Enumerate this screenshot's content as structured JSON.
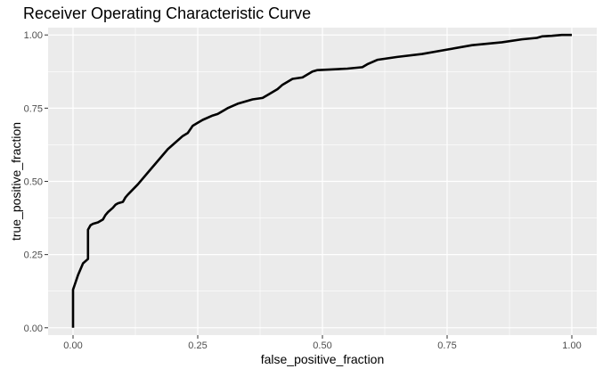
{
  "chart_data": {
    "type": "line",
    "title": "Receiver Operating Characteristic Curve",
    "xlabel": "false_positive_fraction",
    "ylabel": "true_positive_fraction",
    "xlim": [
      -0.05,
      1.05
    ],
    "ylim": [
      -0.025,
      1.025
    ],
    "x_ticks": [
      0.0,
      0.25,
      0.5,
      0.75,
      1.0
    ],
    "x_tick_labels": [
      "0.00",
      "0.25",
      "0.50",
      "0.75",
      "1.00"
    ],
    "y_ticks": [
      0.0,
      0.25,
      0.5,
      0.75,
      1.0
    ],
    "y_tick_labels": [
      "0.00",
      "0.25",
      "0.50",
      "0.75",
      "1.00"
    ],
    "grid": true,
    "legend": "none",
    "colors": {
      "panel_background": "#ebebeb",
      "grid_major": "#ffffff",
      "line": "#000000",
      "tick_text": "#4d4d4d"
    },
    "series": [
      {
        "x": [
          0.0,
          0.0,
          0.01,
          0.02,
          0.03,
          0.03,
          0.035,
          0.04,
          0.05,
          0.06,
          0.065,
          0.07,
          0.08,
          0.085,
          0.09,
          0.1,
          0.105,
          0.11,
          0.13,
          0.15,
          0.17,
          0.19,
          0.21,
          0.22,
          0.23,
          0.24,
          0.25,
          0.26,
          0.28,
          0.29,
          0.31,
          0.33,
          0.34,
          0.36,
          0.38,
          0.39,
          0.41,
          0.42,
          0.44,
          0.46,
          0.48,
          0.49,
          0.55,
          0.58,
          0.59,
          0.61,
          0.63,
          0.65,
          0.7,
          0.75,
          0.8,
          0.83,
          0.86,
          0.9,
          0.93,
          0.94,
          0.96,
          0.98,
          1.0
        ],
        "y": [
          0.0,
          0.13,
          0.18,
          0.22,
          0.235,
          0.335,
          0.35,
          0.355,
          0.36,
          0.37,
          0.385,
          0.395,
          0.41,
          0.42,
          0.425,
          0.43,
          0.445,
          0.455,
          0.49,
          0.53,
          0.57,
          0.61,
          0.64,
          0.655,
          0.665,
          0.69,
          0.7,
          0.71,
          0.725,
          0.73,
          0.75,
          0.765,
          0.77,
          0.78,
          0.785,
          0.795,
          0.815,
          0.83,
          0.85,
          0.855,
          0.875,
          0.88,
          0.885,
          0.89,
          0.9,
          0.915,
          0.92,
          0.925,
          0.935,
          0.95,
          0.965,
          0.97,
          0.975,
          0.985,
          0.99,
          0.995,
          0.997,
          1.0,
          1.0
        ]
      }
    ]
  }
}
